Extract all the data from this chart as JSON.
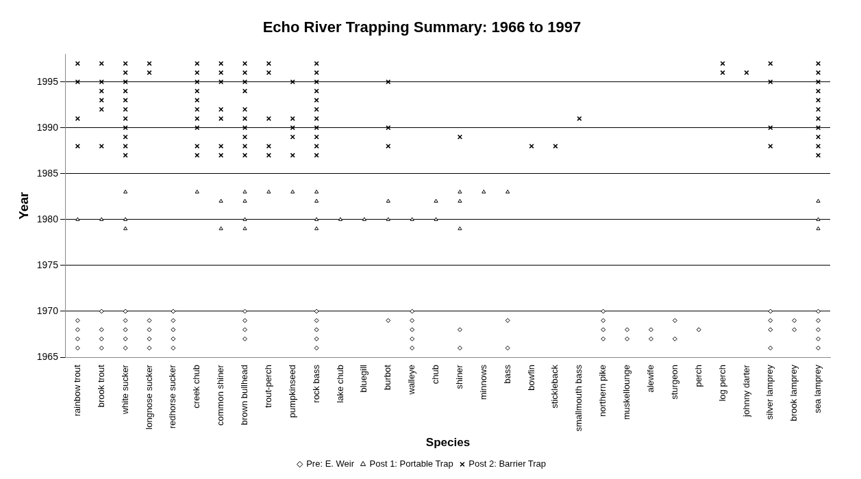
{
  "chart_data": {
    "type": "scatter",
    "title": "Echo River Trapping Summary: 1966 to 1997",
    "xlabel": "Species",
    "ylabel": "Year",
    "categories": [
      "rainbow trout",
      "brook trout",
      "white sucker",
      "longnose sucker",
      "redhorse sucker",
      "creek chub",
      "common shiner",
      "brown bullhead",
      "trout-perch",
      "pumpkinseed",
      "rock bass",
      "lake chub",
      "bluegill",
      "burbot",
      "walleye",
      "chub",
      "shiner",
      "minnows",
      "bass",
      "bowfin",
      "stickleback",
      "smallmouth bass",
      "northern pike",
      "muskellounge",
      "alewife",
      "sturgeon",
      "perch",
      "log perch",
      "johnny darter",
      "silver lamprey",
      "brook lamprey",
      "sea lamprey"
    ],
    "ylim": [
      1965,
      1998
    ],
    "yticks": [
      1965,
      1970,
      1975,
      1980,
      1985,
      1990,
      1995
    ],
    "grid": "y",
    "legend": "bottom",
    "series": [
      {
        "name": "Pre: E. Weir",
        "color": "#000000",
        "marker": "diamond",
        "x": [
          "rainbow trout",
          "rainbow trout",
          "rainbow trout",
          "rainbow trout",
          "brook trout",
          "brook trout",
          "brook trout",
          "brook trout",
          "white sucker",
          "white sucker",
          "white sucker",
          "white sucker",
          "white sucker",
          "longnose sucker",
          "longnose sucker",
          "longnose sucker",
          "longnose sucker",
          "redhorse sucker",
          "redhorse sucker",
          "redhorse sucker",
          "redhorse sucker",
          "redhorse sucker",
          "brown bullhead",
          "brown bullhead",
          "brown bullhead",
          "brown bullhead",
          "rock bass",
          "rock bass",
          "rock bass",
          "rock bass",
          "rock bass",
          "burbot",
          "walleye",
          "walleye",
          "walleye",
          "walleye",
          "walleye",
          "shiner",
          "shiner",
          "bass",
          "bass",
          "northern pike",
          "northern pike",
          "northern pike",
          "northern pike",
          "muskellounge",
          "muskellounge",
          "alewife",
          "alewife",
          "sturgeon",
          "sturgeon",
          "perch",
          "silver lamprey",
          "silver lamprey",
          "silver lamprey",
          "silver lamprey",
          "brook lamprey",
          "brook lamprey",
          "sea lamprey",
          "sea lamprey",
          "sea lamprey",
          "sea lamprey",
          "sea lamprey"
        ],
        "values": [
          1969,
          1968,
          1967,
          1966,
          1970,
          1968,
          1967,
          1966,
          1970,
          1969,
          1968,
          1967,
          1966,
          1969,
          1968,
          1967,
          1966,
          1970,
          1969,
          1968,
          1967,
          1966,
          1970,
          1969,
          1968,
          1967,
          1970,
          1969,
          1968,
          1967,
          1966,
          1969,
          1970,
          1969,
          1968,
          1967,
          1966,
          1968,
          1966,
          1969,
          1966,
          1970,
          1969,
          1968,
          1967,
          1968,
          1967,
          1968,
          1967,
          1969,
          1967,
          1968,
          1970,
          1969,
          1968,
          1966,
          1969,
          1968,
          1970,
          1969,
          1968,
          1967,
          1966
        ]
      },
      {
        "name": "Post 1: Portable Trap",
        "color": "#000000",
        "marker": "triangle",
        "x": [
          "rainbow trout",
          "brook trout",
          "white sucker",
          "white sucker",
          "white sucker",
          "creek chub",
          "common shiner",
          "common shiner",
          "brown bullhead",
          "brown bullhead",
          "brown bullhead",
          "brown bullhead",
          "trout-perch",
          "pumpkinseed",
          "rock bass",
          "rock bass",
          "rock bass",
          "rock bass",
          "lake chub",
          "bluegill",
          "burbot",
          "burbot",
          "walleye",
          "chub",
          "chub",
          "shiner",
          "shiner",
          "shiner",
          "minnows",
          "bass",
          "sea lamprey",
          "sea lamprey",
          "sea lamprey"
        ],
        "values": [
          1980,
          1980,
          1983,
          1980,
          1979,
          1983,
          1982,
          1979,
          1983,
          1982,
          1980,
          1979,
          1983,
          1983,
          1983,
          1982,
          1980,
          1979,
          1980,
          1980,
          1982,
          1980,
          1980,
          1982,
          1980,
          1983,
          1982,
          1979,
          1983,
          1983,
          1982,
          1980,
          1979
        ]
      },
      {
        "name": "Post 2: Barrier Trap",
        "color": "#000000",
        "marker": "cross",
        "x": [
          "rainbow trout",
          "rainbow trout",
          "rainbow trout",
          "rainbow trout",
          "brook trout",
          "brook trout",
          "brook trout",
          "brook trout",
          "brook trout",
          "brook trout",
          "white sucker",
          "white sucker",
          "white sucker",
          "white sucker",
          "white sucker",
          "white sucker",
          "white sucker",
          "white sucker",
          "white sucker",
          "white sucker",
          "white sucker",
          "longnose sucker",
          "longnose sucker",
          "creek chub",
          "creek chub",
          "creek chub",
          "creek chub",
          "creek chub",
          "creek chub",
          "creek chub",
          "creek chub",
          "creek chub",
          "creek chub",
          "common shiner",
          "common shiner",
          "common shiner",
          "common shiner",
          "common shiner",
          "common shiner",
          "common shiner",
          "brown bullhead",
          "brown bullhead",
          "brown bullhead",
          "brown bullhead",
          "brown bullhead",
          "brown bullhead",
          "brown bullhead",
          "brown bullhead",
          "brown bullhead",
          "brown bullhead",
          "trout-perch",
          "trout-perch",
          "trout-perch",
          "trout-perch",
          "trout-perch",
          "pumpkinseed",
          "pumpkinseed",
          "pumpkinseed",
          "pumpkinseed",
          "pumpkinseed",
          "rock bass",
          "rock bass",
          "rock bass",
          "rock bass",
          "rock bass",
          "rock bass",
          "rock bass",
          "rock bass",
          "rock bass",
          "rock bass",
          "rock bass",
          "burbot",
          "burbot",
          "burbot",
          "shiner",
          "bowfin",
          "stickleback",
          "smallmouth bass",
          "log perch",
          "log perch",
          "johnny darter",
          "silver lamprey",
          "silver lamprey",
          "silver lamprey",
          "silver lamprey",
          "sea lamprey",
          "sea lamprey",
          "sea lamprey",
          "sea lamprey",
          "sea lamprey",
          "sea lamprey",
          "sea lamprey",
          "sea lamprey",
          "sea lamprey",
          "sea lamprey",
          "sea lamprey"
        ],
        "values": [
          1997,
          1995,
          1991,
          1988,
          1997,
          1995,
          1994,
          1993,
          1992,
          1988,
          1997,
          1996,
          1995,
          1994,
          1993,
          1992,
          1991,
          1990,
          1989,
          1988,
          1987,
          1997,
          1996,
          1997,
          1996,
          1995,
          1994,
          1993,
          1992,
          1991,
          1990,
          1988,
          1987,
          1997,
          1996,
          1995,
          1992,
          1991,
          1988,
          1987,
          1997,
          1996,
          1995,
          1994,
          1992,
          1991,
          1990,
          1989,
          1988,
          1987,
          1997,
          1996,
          1991,
          1988,
          1987,
          1995,
          1991,
          1990,
          1989,
          1987,
          1997,
          1996,
          1995,
          1994,
          1993,
          1992,
          1991,
          1990,
          1989,
          1988,
          1987,
          1995,
          1990,
          1988,
          1989,
          1988,
          1988,
          1991,
          1997,
          1996,
          1996,
          1997,
          1995,
          1990,
          1988,
          1997,
          1996,
          1995,
          1994,
          1993,
          1992,
          1991,
          1990,
          1989,
          1988,
          1987
        ]
      }
    ]
  }
}
